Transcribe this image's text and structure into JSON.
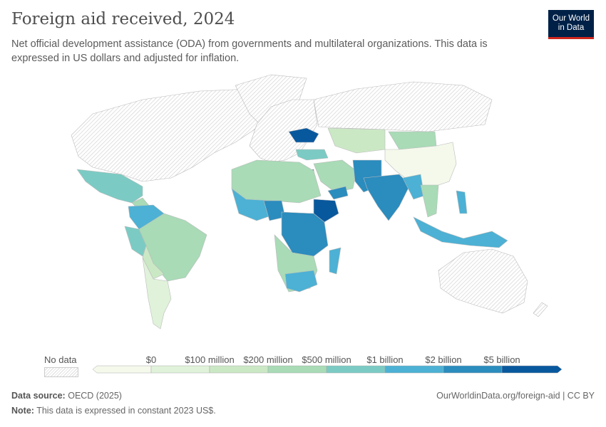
{
  "header": {
    "title": "Foreign aid received, 2024",
    "subtitle": "Net official development assistance (ODA) from governments and multilateral organizations. This data is expressed in US dollars and adjusted for inflation.",
    "logo": "Our World in Data"
  },
  "legend": {
    "no_data_label": "No data",
    "ticks": [
      "$0",
      "$100 million",
      "$200 million",
      "$500 million",
      "$1 billion",
      "$2 billion",
      "$5 billion"
    ],
    "colors": [
      "#f4f9ec",
      "#e0f2da",
      "#cbe8c5",
      "#a8dbb6",
      "#7bcbc4",
      "#4cb1d4",
      "#2b8cbe",
      "#08589e"
    ],
    "no_data_color": "#e0e0e0"
  },
  "footer": {
    "source_label": "Data source:",
    "source": "OECD (2025)",
    "url": "OurWorldinData.org/foreign-aid | CC BY",
    "note_label": "Note:",
    "note": "This data is expressed in constant 2023 US$."
  }
}
